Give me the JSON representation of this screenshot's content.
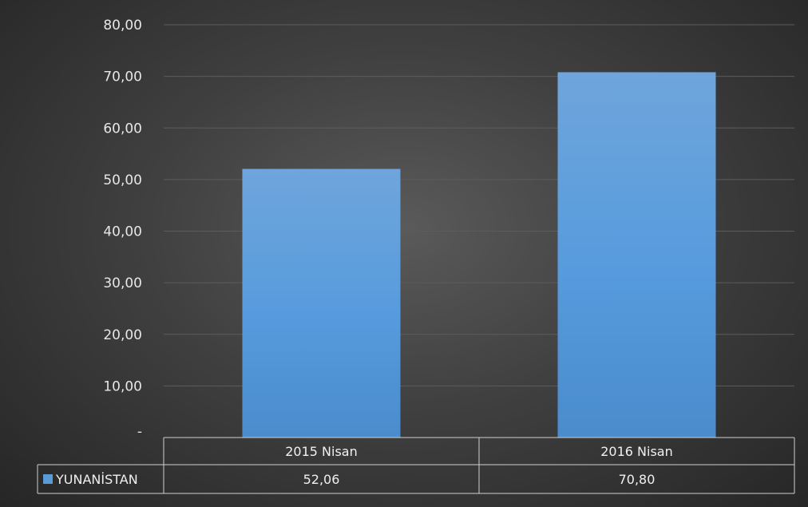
{
  "chart_data": {
    "type": "bar",
    "categories": [
      "2015 Nisan",
      "2016 Nisan"
    ],
    "series": [
      {
        "name": "YUNANİSTAN",
        "values": [
          52.06,
          70.8
        ],
        "value_labels": [
          "52,06",
          "70,80"
        ],
        "color": "#5b9bd5"
      }
    ],
    "ylim": [
      0,
      80
    ],
    "yticks": [
      0,
      10,
      20,
      30,
      40,
      50,
      60,
      70,
      80
    ],
    "ytick_labels": [
      "-",
      "10,00",
      "20,00",
      "30,00",
      "40,00",
      "50,00",
      "60,00",
      "70,00",
      "80,00"
    ],
    "grid": true,
    "legend": "data-table-left",
    "data_table": true,
    "colors": {
      "gridline": "#5c5c5c",
      "text": "#e6e6e6",
      "table_border": "#cfcfcf"
    }
  }
}
